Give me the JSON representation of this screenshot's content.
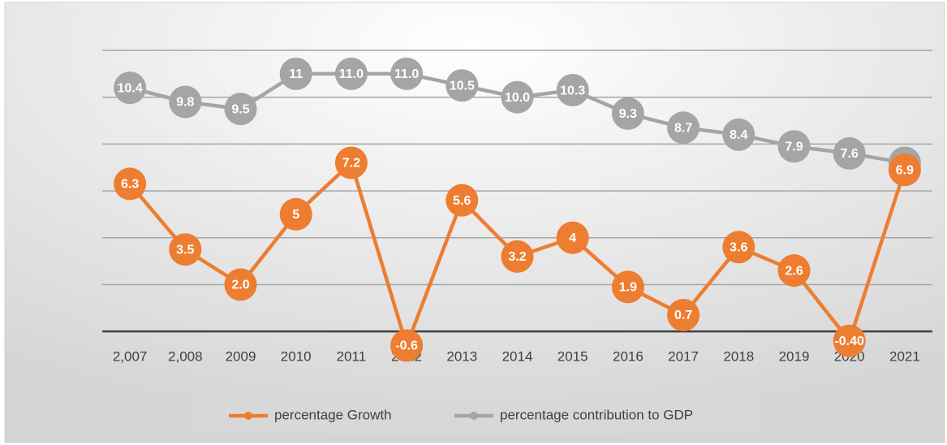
{
  "chart_data": {
    "type": "line",
    "categories": [
      "2,007",
      "2,008",
      "2009",
      "2010",
      "2011",
      "2012",
      "2013",
      "2014",
      "2015",
      "2016",
      "2017",
      "2018",
      "2019",
      "2020",
      "2021"
    ],
    "series": [
      {
        "name": "percentage Growth",
        "color": "#ED7D31",
        "values": [
          6.3,
          3.5,
          2.0,
          5,
          7.2,
          -0.6,
          5.6,
          3.2,
          4,
          1.9,
          0.7,
          3.6,
          2.6,
          -0.4,
          6.9
        ],
        "value_labels": [
          "6.3",
          "3.5",
          "2.0",
          "5",
          "7.2",
          "-0.6",
          "5.6",
          "3.2",
          "4",
          "1.9",
          "0.7",
          "3.6",
          "2.6",
          "-0.40",
          "6.9"
        ]
      },
      {
        "name": "percentage contribution to GDP",
        "color": "#A5A5A5",
        "values": [
          10.4,
          9.8,
          9.5,
          11,
          11.0,
          11.0,
          10.5,
          10.0,
          10.3,
          9.3,
          8.7,
          8.4,
          7.9,
          7.6,
          7.2
        ],
        "value_labels": [
          "10.4",
          "9.8",
          "9.5",
          "11",
          "11.0",
          "11.0",
          "10.5",
          "10.0",
          "10.3",
          "9.3",
          "8.7",
          "8.4",
          "7.9",
          "7.6",
          "7.2"
        ]
      }
    ],
    "ylim": [
      -1,
      12
    ],
    "yticks": [
      0,
      2,
      4,
      6,
      8,
      10,
      12
    ],
    "grid": true,
    "legend": "bottom"
  }
}
